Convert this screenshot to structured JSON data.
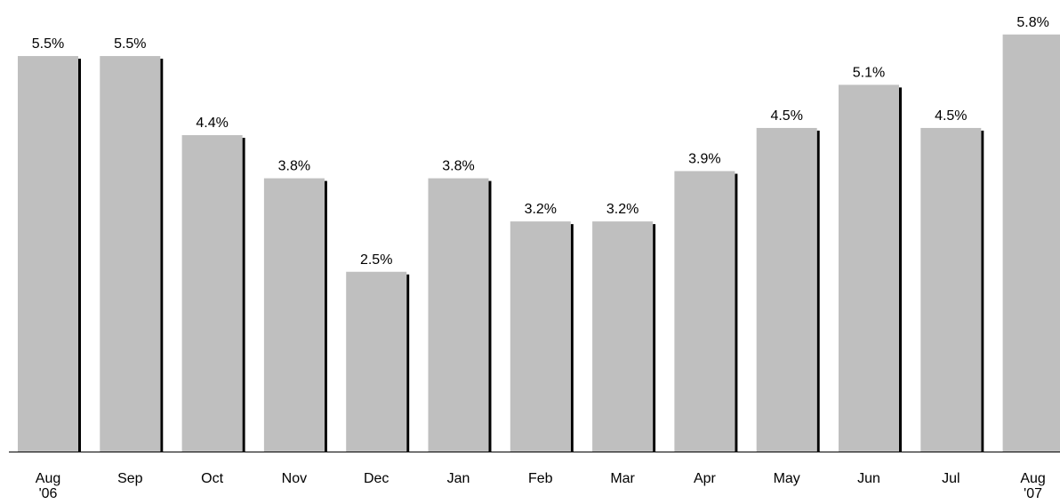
{
  "chart_data": {
    "type": "bar",
    "categories": [
      "Aug\n'06",
      "Sep",
      "Oct",
      "Nov",
      "Dec",
      "Jan",
      "Feb",
      "Mar",
      "Apr",
      "May",
      "Jun",
      "Jul",
      "Aug\n'07"
    ],
    "values": [
      5.5,
      5.5,
      4.4,
      3.8,
      2.5,
      3.8,
      3.2,
      3.2,
      3.9,
      4.5,
      5.1,
      4.5,
      5.8
    ],
    "value_labels": [
      "5.5%",
      "5.5%",
      "4.4%",
      "3.8%",
      "2.5%",
      "3.8%",
      "3.2%",
      "3.2%",
      "3.9%",
      "4.5%",
      "5.1%",
      "4.5%",
      "5.8%"
    ],
    "color": "#bfbfbf"
  }
}
